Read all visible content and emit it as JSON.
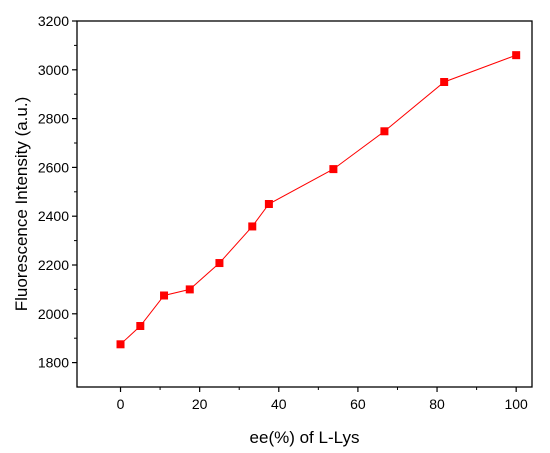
{
  "chart_data": {
    "type": "line",
    "title": "",
    "xlabel": "ee(%) of L-Lys",
    "ylabel": "Fluorescence Intensity (a.u.)",
    "xlim": [
      -11,
      104
    ],
    "ylim": [
      1700,
      3200
    ],
    "xticks": [
      0,
      20,
      40,
      60,
      80,
      100
    ],
    "yticks": [
      1800,
      2000,
      2200,
      2400,
      2600,
      2800,
      3000,
      3200
    ],
    "grid": false,
    "legend": "none",
    "marker": "square",
    "color": "#ff0000",
    "series": [
      {
        "x": [
          0,
          5,
          11,
          17.5,
          25,
          33.3,
          37.5,
          53.8,
          66.7,
          81.8,
          100
        ],
        "y": [
          1875,
          1950,
          2075,
          2100,
          2208,
          2358,
          2450,
          2593,
          2748,
          2950,
          3060
        ]
      }
    ]
  }
}
